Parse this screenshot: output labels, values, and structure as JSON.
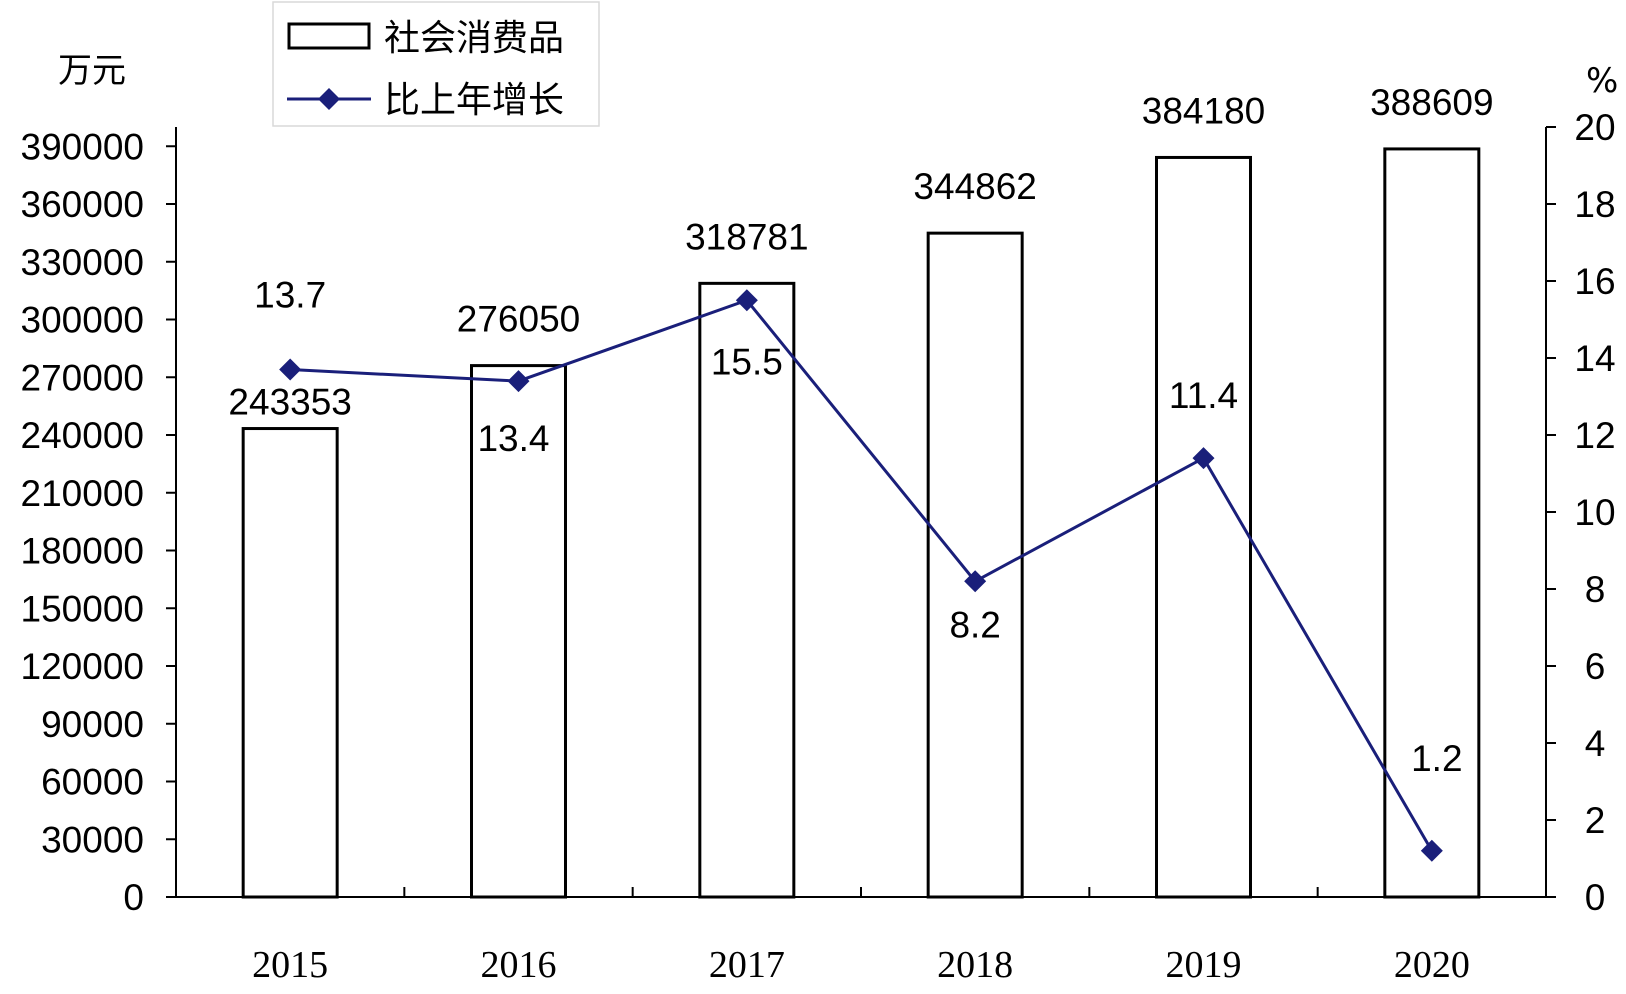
{
  "chart_data": {
    "type": "bar",
    "categories": [
      "2015",
      "2016",
      "2017",
      "2018",
      "2019",
      "2020"
    ],
    "series": [
      {
        "name": "社会消费品",
        "type": "bar",
        "axis": "left",
        "values": [
          243353,
          276050,
          318781,
          344862,
          384180,
          388609
        ],
        "labels": [
          "243353",
          "276050",
          "318781",
          "344862",
          "384180",
          "388609"
        ]
      },
      {
        "name": "比上年增长",
        "type": "line",
        "axis": "right",
        "values": [
          13.7,
          13.4,
          15.5,
          8.2,
          11.4,
          1.2
        ],
        "labels": [
          "13.7",
          "13.4",
          "15.5",
          "8.2",
          "11.4",
          "1.2"
        ],
        "color": "#1a1f7a"
      }
    ],
    "y_left": {
      "unit": "万元",
      "ylim": [
        0,
        400000
      ],
      "ticks": [
        0,
        30000,
        60000,
        90000,
        120000,
        150000,
        180000,
        210000,
        240000,
        270000,
        300000,
        330000,
        360000,
        390000
      ]
    },
    "y_right": {
      "unit": "%",
      "ylim": [
        0,
        20
      ],
      "ticks": [
        0,
        2,
        4,
        6,
        8,
        10,
        12,
        14,
        16,
        18,
        20
      ]
    },
    "grid": false,
    "legend": "top-left"
  }
}
